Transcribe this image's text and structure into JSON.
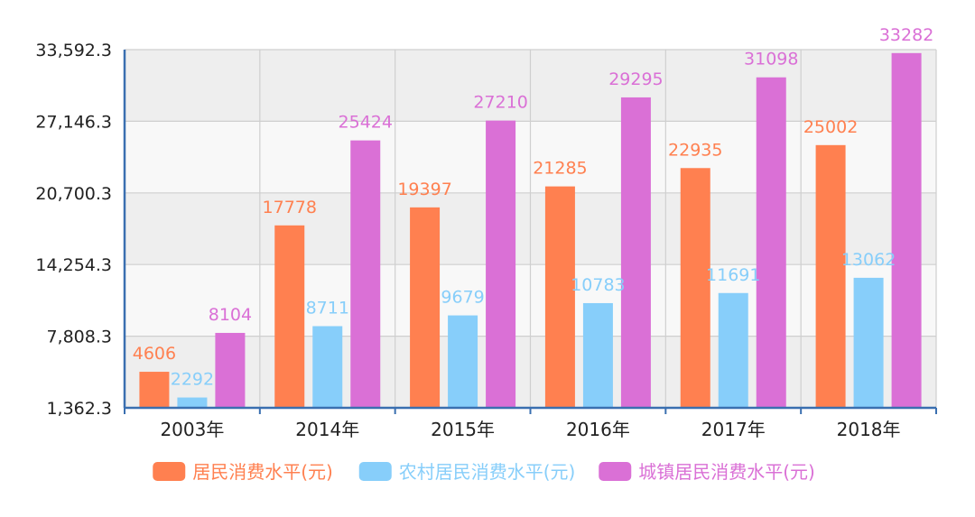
{
  "chart_data": {
    "type": "bar",
    "title": "",
    "xlabel": "",
    "ylabel": "",
    "categories": [
      "2003年",
      "2014年",
      "2015年",
      "2016年",
      "2017年",
      "2018年"
    ],
    "y_ticks": [
      "1,362.3",
      "7,808.3",
      "14,254.3",
      "20,700.3",
      "27,146.3",
      "33,592.3"
    ],
    "ylim": [
      1362.3,
      33592.3
    ],
    "grid": true,
    "legend_position": "bottom",
    "series": [
      {
        "name": "居民消费水平(元)",
        "color": "#ff8050",
        "values": [
          4606,
          17778,
          19397,
          21285,
          22935,
          25002
        ]
      },
      {
        "name": "农村居民消费水平(元)",
        "color": "#87cefa",
        "values": [
          2292,
          8711,
          9679,
          10783,
          11691,
          13062
        ]
      },
      {
        "name": "城镇居民消费水平(元)",
        "color": "#da70d6",
        "values": [
          8104,
          25424,
          27210,
          29295,
          31098,
          33282
        ]
      }
    ]
  }
}
